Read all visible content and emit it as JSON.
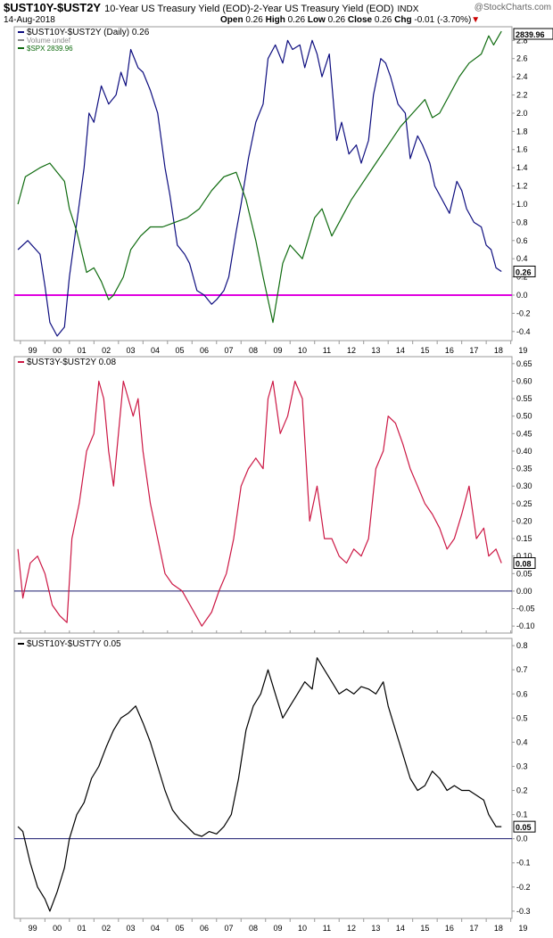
{
  "header": {
    "symbol": "$UST10Y-$UST2Y",
    "subtitle": "10-Year US Treasury Yield (EOD)-2-Year US Treasury Yield (EOD)",
    "exchange": "INDX",
    "date": "14-Aug-2018",
    "open_label": "Open",
    "open": "0.26",
    "high_label": "High",
    "high": "0.26",
    "low_label": "Low",
    "low": "0.26",
    "close_label": "Close",
    "close": "0.26",
    "chg_label": "Chg",
    "chg": "-0.01 (-3.70%)",
    "logo": "@StockCharts.com"
  },
  "colors": {
    "spread": "#0d0d7f",
    "spx": "#0f6b0f",
    "zero_line_top": "#e000e0",
    "spread3y2y": "#cc1744",
    "spread10y7y": "#000000",
    "zero_line": "#1a1a6e"
  },
  "chart_data": [
    {
      "type": "line",
      "title": "$UST10Y-$UST2Y",
      "legend": [
        {
          "label": "$UST10Y-$UST2Y (Daily) 0.26",
          "color": "#0d0d7f"
        },
        {
          "label": "Volume undef",
          "color": "#888888"
        },
        {
          "label": "$SPX 2839.96",
          "color": "#0f6b0f"
        }
      ],
      "x_ticks": [
        "99",
        "00",
        "01",
        "02",
        "03",
        "04",
        "05",
        "06",
        "07",
        "08",
        "09",
        "10",
        "11",
        "12",
        "13",
        "14",
        "15",
        "16",
        "17",
        "18",
        "19"
      ],
      "y_ticks": [
        "-0.4",
        "-0.2",
        "0.0",
        "0.2",
        "0.4",
        "0.6",
        "0.8",
        "1.0",
        "1.2",
        "1.4",
        "1.6",
        "1.8",
        "2.0",
        "2.2",
        "2.4",
        "2.6",
        "2.8"
      ],
      "ylim": [
        -0.5,
        2.95
      ],
      "last_label": "0.26",
      "spx_label": "2839.96",
      "series": [
        {
          "name": "$UST10Y-$UST2Y",
          "color": "#0d0d7f",
          "x": [
            1998.9,
            1999.3,
            1999.8,
            2000.0,
            2000.2,
            2000.5,
            2000.8,
            2001.0,
            2001.3,
            2001.6,
            2001.8,
            2002.0,
            2002.3,
            2002.6,
            2002.9,
            2003.1,
            2003.3,
            2003.5,
            2003.8,
            2004.0,
            2004.3,
            2004.6,
            2004.9,
            2005.1,
            2005.4,
            2005.7,
            2005.9,
            2006.2,
            2006.5,
            2006.8,
            2007.0,
            2007.3,
            2007.5,
            2007.8,
            2008.0,
            2008.3,
            2008.6,
            2008.9,
            2009.1,
            2009.4,
            2009.7,
            2009.9,
            2010.1,
            2010.4,
            2010.6,
            2010.9,
            2011.1,
            2011.3,
            2011.6,
            2011.9,
            2012.1,
            2012.4,
            2012.7,
            2012.9,
            2013.2,
            2013.4,
            2013.7,
            2013.9,
            2014.1,
            2014.4,
            2014.7,
            2014.9,
            2015.2,
            2015.4,
            2015.7,
            2015.9,
            2016.2,
            2016.5,
            2016.8,
            2017.0,
            2017.2,
            2017.5,
            2017.8,
            2018.0,
            2018.2,
            2018.4,
            2018.62
          ],
          "y": [
            0.5,
            0.6,
            0.45,
            0.1,
            -0.3,
            -0.45,
            -0.35,
            0.2,
            0.8,
            1.4,
            2.0,
            1.9,
            2.3,
            2.1,
            2.2,
            2.45,
            2.3,
            2.7,
            2.5,
            2.45,
            2.25,
            2.0,
            1.4,
            1.1,
            0.55,
            0.45,
            0.35,
            0.05,
            0.0,
            -0.1,
            -0.05,
            0.05,
            0.2,
            0.7,
            1.0,
            1.5,
            1.9,
            2.1,
            2.6,
            2.75,
            2.55,
            2.8,
            2.7,
            2.75,
            2.5,
            2.8,
            2.65,
            2.4,
            2.65,
            1.7,
            1.9,
            1.55,
            1.65,
            1.45,
            1.7,
            2.2,
            2.6,
            2.55,
            2.4,
            2.1,
            2.0,
            1.5,
            1.75,
            1.65,
            1.45,
            1.2,
            1.05,
            0.9,
            1.25,
            1.15,
            0.95,
            0.8,
            0.75,
            0.55,
            0.5,
            0.3,
            0.26
          ]
        },
        {
          "name": "$SPX",
          "color": "#0f6b0f",
          "x": [
            1998.9,
            1999.2,
            1999.5,
            1999.8,
            2000.2,
            2000.5,
            2000.8,
            2001.0,
            2001.3,
            2001.7,
            2002.0,
            2002.3,
            2002.6,
            2002.8,
            2003.2,
            2003.5,
            2003.9,
            2004.3,
            2004.8,
            2005.3,
            2005.8,
            2006.3,
            2006.8,
            2007.3,
            2007.8,
            2008.2,
            2008.6,
            2008.9,
            2009.1,
            2009.3,
            2009.7,
            2010.0,
            2010.5,
            2011.0,
            2011.3,
            2011.7,
            2012.2,
            2012.5,
            2013.0,
            2013.5,
            2014.0,
            2014.5,
            2015.0,
            2015.5,
            2015.8,
            2016.1,
            2016.5,
            2016.9,
            2017.3,
            2017.8,
            2018.1,
            2018.3,
            2018.62
          ],
          "y": [
            1.0,
            1.3,
            1.35,
            1.4,
            1.45,
            1.35,
            1.25,
            0.95,
            0.7,
            0.25,
            0.3,
            0.15,
            -0.05,
            0.0,
            0.2,
            0.5,
            0.65,
            0.75,
            0.75,
            0.8,
            0.85,
            0.95,
            1.15,
            1.3,
            1.35,
            1.05,
            0.6,
            0.2,
            -0.05,
            -0.3,
            0.35,
            0.55,
            0.4,
            0.85,
            0.95,
            0.65,
            0.9,
            1.05,
            1.25,
            1.45,
            1.65,
            1.85,
            2.0,
            2.15,
            1.95,
            2.0,
            2.2,
            2.4,
            2.55,
            2.65,
            2.85,
            2.75,
            2.9
          ]
        }
      ]
    },
    {
      "type": "line",
      "title": "$UST3Y-$UST2Y",
      "legend": [
        {
          "label": "$UST3Y-$UST2Y 0.08",
          "color": "#cc1744"
        }
      ],
      "x_ticks": [],
      "y_ticks": [
        "-0.10",
        "-0.05",
        "0.00",
        "0.05",
        "0.10",
        "0.15",
        "0.20",
        "0.25",
        "0.30",
        "0.35",
        "0.40",
        "0.45",
        "0.50",
        "0.55",
        "0.60",
        "0.65"
      ],
      "ylim": [
        -0.12,
        0.67
      ],
      "last_label": "0.08",
      "series": [
        {
          "name": "$UST3Y-$UST2Y",
          "color": "#cc1744",
          "x": [
            1998.9,
            1999.1,
            1999.4,
            1999.7,
            2000.0,
            2000.3,
            2000.6,
            2000.9,
            2001.1,
            2001.4,
            2001.7,
            2002.0,
            2002.2,
            2002.4,
            2002.6,
            2002.8,
            2003.0,
            2003.2,
            2003.4,
            2003.6,
            2003.8,
            2004.0,
            2004.3,
            2004.6,
            2004.9,
            2005.2,
            2005.6,
            2006.0,
            2006.4,
            2006.8,
            2007.1,
            2007.4,
            2007.7,
            2008.0,
            2008.3,
            2008.6,
            2008.9,
            2009.1,
            2009.3,
            2009.6,
            2009.9,
            2010.2,
            2010.5,
            2010.8,
            2011.1,
            2011.4,
            2011.7,
            2012.0,
            2012.3,
            2012.6,
            2012.9,
            2013.2,
            2013.5,
            2013.8,
            2014.0,
            2014.3,
            2014.6,
            2014.9,
            2015.2,
            2015.5,
            2015.8,
            2016.1,
            2016.4,
            2016.7,
            2017.0,
            2017.3,
            2017.6,
            2017.9,
            2018.1,
            2018.4,
            2018.62
          ],
          "y": [
            0.12,
            -0.02,
            0.08,
            0.1,
            0.05,
            -0.04,
            -0.07,
            -0.09,
            0.15,
            0.25,
            0.4,
            0.45,
            0.6,
            0.55,
            0.4,
            0.3,
            0.45,
            0.6,
            0.55,
            0.5,
            0.55,
            0.4,
            0.25,
            0.15,
            0.05,
            0.02,
            0.0,
            -0.05,
            -0.1,
            -0.06,
            0.0,
            0.05,
            0.15,
            0.3,
            0.35,
            0.38,
            0.35,
            0.55,
            0.6,
            0.45,
            0.5,
            0.6,
            0.55,
            0.2,
            0.3,
            0.15,
            0.15,
            0.1,
            0.08,
            0.12,
            0.1,
            0.15,
            0.35,
            0.4,
            0.5,
            0.48,
            0.42,
            0.35,
            0.3,
            0.25,
            0.22,
            0.18,
            0.12,
            0.15,
            0.22,
            0.3,
            0.15,
            0.18,
            0.1,
            0.12,
            0.08
          ]
        }
      ]
    },
    {
      "type": "line",
      "title": "$UST10Y-$UST7Y",
      "legend": [
        {
          "label": "$UST10Y-$UST7Y 0.05",
          "color": "#000000"
        }
      ],
      "x_ticks": [
        "99",
        "00",
        "01",
        "02",
        "03",
        "04",
        "05",
        "06",
        "07",
        "08",
        "09",
        "10",
        "11",
        "12",
        "13",
        "14",
        "15",
        "16",
        "17",
        "18",
        "19"
      ],
      "y_ticks": [
        "-0.3",
        "-0.2",
        "-0.1",
        "0.0",
        "0.1",
        "0.2",
        "0.3",
        "0.4",
        "0.5",
        "0.6",
        "0.7",
        "0.8"
      ],
      "ylim": [
        -0.33,
        0.83
      ],
      "last_label": "0.05",
      "series": [
        {
          "name": "$UST10Y-$UST7Y",
          "color": "#000000",
          "x": [
            1998.9,
            1999.1,
            1999.4,
            1999.7,
            2000.0,
            2000.2,
            2000.5,
            2000.8,
            2001.0,
            2001.3,
            2001.6,
            2001.9,
            2002.2,
            2002.5,
            2002.8,
            2003.1,
            2003.4,
            2003.7,
            2004.0,
            2004.3,
            2004.6,
            2004.9,
            2005.2,
            2005.5,
            2005.8,
            2006.1,
            2006.4,
            2006.7,
            2007.0,
            2007.3,
            2007.6,
            2007.9,
            2008.2,
            2008.5,
            2008.8,
            2009.1,
            2009.4,
            2009.7,
            2010.0,
            2010.3,
            2010.6,
            2010.9,
            2011.1,
            2011.4,
            2011.7,
            2012.0,
            2012.3,
            2012.6,
            2012.9,
            2013.2,
            2013.5,
            2013.8,
            2014.0,
            2014.3,
            2014.6,
            2014.9,
            2015.2,
            2015.5,
            2015.8,
            2016.1,
            2016.4,
            2016.7,
            2017.0,
            2017.3,
            2017.6,
            2017.9,
            2018.1,
            2018.4,
            2018.62
          ],
          "y": [
            0.05,
            0.03,
            -0.1,
            -0.2,
            -0.25,
            -0.3,
            -0.22,
            -0.12,
            0.0,
            0.1,
            0.15,
            0.25,
            0.3,
            0.38,
            0.45,
            0.5,
            0.52,
            0.55,
            0.48,
            0.4,
            0.3,
            0.2,
            0.12,
            0.08,
            0.05,
            0.02,
            0.01,
            0.03,
            0.02,
            0.05,
            0.1,
            0.25,
            0.45,
            0.55,
            0.6,
            0.7,
            0.6,
            0.5,
            0.55,
            0.6,
            0.65,
            0.62,
            0.75,
            0.7,
            0.65,
            0.6,
            0.62,
            0.6,
            0.63,
            0.62,
            0.6,
            0.65,
            0.55,
            0.45,
            0.35,
            0.25,
            0.2,
            0.22,
            0.28,
            0.25,
            0.2,
            0.22,
            0.2,
            0.2,
            0.18,
            0.16,
            0.1,
            0.05,
            0.05
          ]
        }
      ]
    }
  ]
}
